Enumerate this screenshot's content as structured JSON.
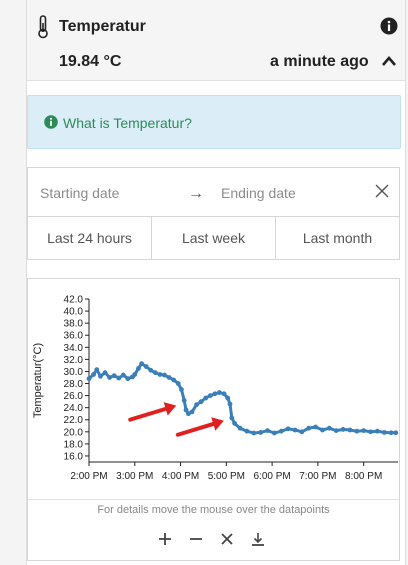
{
  "sensor": {
    "title": "Temperatur",
    "value": "19.84 °C",
    "last_update": "a minute ago"
  },
  "info_box": {
    "text": "What is Temperatur?"
  },
  "date_range": {
    "start_placeholder": "Starting date",
    "arrow": "→",
    "end_placeholder": "Ending date"
  },
  "ranges": [
    "Last 24 hours",
    "Last week",
    "Last month"
  ],
  "chart_hint": "For details move the mouse over the datapoints",
  "toolbar_icons": [
    "zoom-in-icon",
    "zoom-out-icon",
    "reset-icon",
    "download-icon"
  ],
  "colors": {
    "accent": "#2e8b57",
    "series": "#3a7fb8",
    "annotation": "#e02020",
    "info_bg": "#dbeef7"
  },
  "chart_data": {
    "type": "scatter",
    "title": "",
    "xlabel": "",
    "ylabel": "Temperatur(°C)",
    "ylim": [
      15,
      42
    ],
    "xlim": [
      14.0,
      20.75
    ],
    "y_ticks": [
      "16.0",
      "18.0",
      "20.0",
      "22.0",
      "24.0",
      "26.0",
      "28.0",
      "30.0",
      "32.0",
      "34.0",
      "36.0",
      "38.0",
      "40.0",
      "42.0"
    ],
    "y_tick_values": [
      16,
      18,
      20,
      22,
      24,
      26,
      28,
      30,
      32,
      34,
      36,
      38,
      40,
      42
    ],
    "x_ticks": [
      "2:00 PM",
      "3:00 PM",
      "4:00 PM",
      "5:00 PM",
      "6:00 PM",
      "7:00 PM",
      "8:00 PM"
    ],
    "x_tick_values": [
      14,
      15,
      16,
      17,
      18,
      19,
      20
    ],
    "series": [
      {
        "points": [
          [
            14.0,
            28.8
          ],
          [
            14.1,
            29.5
          ],
          [
            14.17,
            30.3
          ],
          [
            14.25,
            29.2
          ],
          [
            14.35,
            29.8
          ],
          [
            14.45,
            29.0
          ],
          [
            14.55,
            29.3
          ],
          [
            14.65,
            28.9
          ],
          [
            14.75,
            29.4
          ],
          [
            14.85,
            28.8
          ],
          [
            14.95,
            29.1
          ],
          [
            15.0,
            29.5
          ],
          [
            15.08,
            30.5
          ],
          [
            15.15,
            31.3
          ],
          [
            15.25,
            30.8
          ],
          [
            15.35,
            30.2
          ],
          [
            15.45,
            29.8
          ],
          [
            15.55,
            29.5
          ],
          [
            15.65,
            29.4
          ],
          [
            15.75,
            29.0
          ],
          [
            15.85,
            28.6
          ],
          [
            15.95,
            28.0
          ],
          [
            16.02,
            27.0
          ],
          [
            16.08,
            25.2
          ],
          [
            16.12,
            23.6
          ],
          [
            16.17,
            23.0
          ],
          [
            16.25,
            23.3
          ],
          [
            16.35,
            24.5
          ],
          [
            16.45,
            25.0
          ],
          [
            16.55,
            25.6
          ],
          [
            16.65,
            26.0
          ],
          [
            16.75,
            26.3
          ],
          [
            16.85,
            26.5
          ],
          [
            16.95,
            26.3
          ],
          [
            17.03,
            25.6
          ],
          [
            17.08,
            24.6
          ],
          [
            17.12,
            22.3
          ],
          [
            17.18,
            21.4
          ],
          [
            17.3,
            20.6
          ],
          [
            17.45,
            20.1
          ],
          [
            17.6,
            19.8
          ],
          [
            17.75,
            19.9
          ],
          [
            17.9,
            20.2
          ],
          [
            18.05,
            19.8
          ],
          [
            18.2,
            20.1
          ],
          [
            18.35,
            20.5
          ],
          [
            18.5,
            20.3
          ],
          [
            18.65,
            20.0
          ],
          [
            18.8,
            20.6
          ],
          [
            18.95,
            20.8
          ],
          [
            19.1,
            20.3
          ],
          [
            19.25,
            20.6
          ],
          [
            19.4,
            20.2
          ],
          [
            19.55,
            20.4
          ],
          [
            19.7,
            20.3
          ],
          [
            19.85,
            20.1
          ],
          [
            20.0,
            20.2
          ],
          [
            20.15,
            20.0
          ],
          [
            20.3,
            20.1
          ],
          [
            20.45,
            19.9
          ],
          [
            20.6,
            19.85
          ],
          [
            20.7,
            19.84
          ]
        ]
      }
    ],
    "annotations": [
      {
        "type": "arrow",
        "points_to": [
          16.08,
          24.5
        ]
      },
      {
        "type": "arrow",
        "points_to": [
          17.12,
          22.0
        ]
      }
    ]
  }
}
